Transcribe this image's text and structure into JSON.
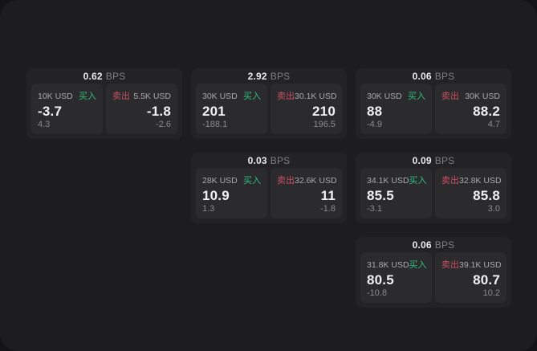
{
  "labels": {
    "bps_suffix": "BPS",
    "buy": "买入",
    "sell": "卖出"
  },
  "colors": {
    "buy_accent": "#30bd80",
    "sell_accent": "#c94f63",
    "page_bg": "#1d1d1f",
    "card_bg": "#232326",
    "panel_bg": "#2b2b2e"
  },
  "cards": [
    {
      "bps": "0.62",
      "buy": {
        "amount": "10K USD",
        "value": "-3.7",
        "sub": "4.3"
      },
      "sell": {
        "amount": "5.5K USD",
        "value": "-1.8",
        "sub": "-2.6"
      }
    },
    {
      "bps": "2.92",
      "buy": {
        "amount": "30K USD",
        "value": "201",
        "sub": "-188.1"
      },
      "sell": {
        "amount": "30.1K USD",
        "value": "210",
        "sub": "196.5"
      }
    },
    {
      "bps": "0.06",
      "buy": {
        "amount": "30K USD",
        "value": "88",
        "sub": "-4.9"
      },
      "sell": {
        "amount": "30K USD",
        "value": "88.2",
        "sub": "4.7"
      }
    },
    {
      "bps": "0.03",
      "buy": {
        "amount": "28K USD",
        "value": "10.9",
        "sub": "1.3"
      },
      "sell": {
        "amount": "32.6K USD",
        "value": "11",
        "sub": "-1.8"
      }
    },
    {
      "bps": "0.09",
      "buy": {
        "amount": "34.1K USD",
        "value": "85.5",
        "sub": "-3.1"
      },
      "sell": {
        "amount": "32.8K USD",
        "value": "85.8",
        "sub": "3.0"
      }
    },
    {
      "bps": "0.06",
      "buy": {
        "amount": "31.8K USD",
        "value": "80.5",
        "sub": "-10.8"
      },
      "sell": {
        "amount": "39.1K USD",
        "value": "80.7",
        "sub": "10.2"
      }
    }
  ]
}
